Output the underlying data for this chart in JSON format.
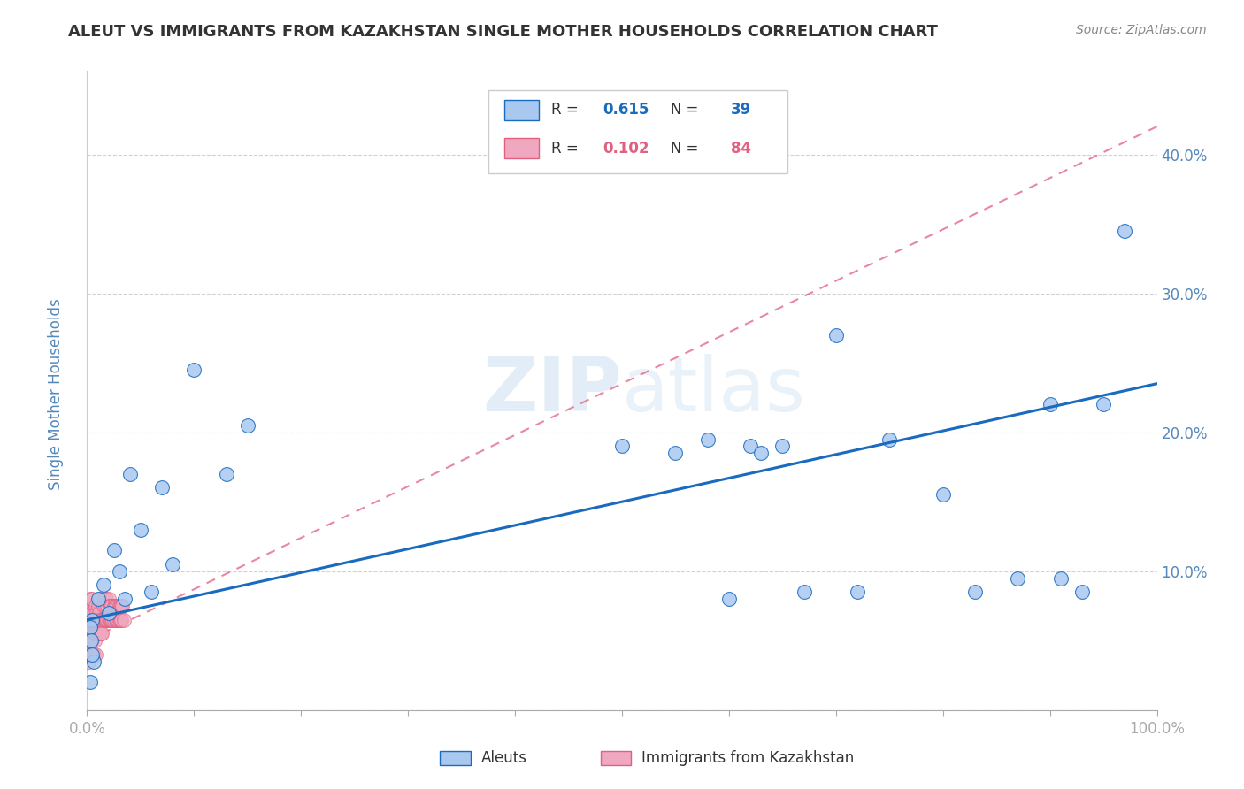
{
  "title": "ALEUT VS IMMIGRANTS FROM KAZAKHSTAN SINGLE MOTHER HOUSEHOLDS CORRELATION CHART",
  "source": "Source: ZipAtlas.com",
  "ylabel": "Single Mother Households",
  "legend_label1": "Aleuts",
  "legend_label2": "Immigrants from Kazakhstan",
  "r1": 0.615,
  "n1": 39,
  "r2": 0.102,
  "n2": 84,
  "color1": "#a8c8f0",
  "color2": "#f0a8c0",
  "line1_color": "#1a6bbf",
  "line2_color": "#e06080",
  "title_color": "#333333",
  "source_color": "#888888",
  "axis_color": "#5588bb",
  "background_color": "#ffffff",
  "grid_color": "#cccccc",
  "watermark_color": "#c8ddf0",
  "aleut_x": [
    0.003,
    0.005,
    0.006,
    0.003,
    0.004,
    0.005,
    0.01,
    0.015,
    0.02,
    0.025,
    0.03,
    0.035,
    0.04,
    0.05,
    0.06,
    0.07,
    0.08,
    0.1,
    0.13,
    0.15,
    0.5,
    0.55,
    0.58,
    0.6,
    0.62,
    0.63,
    0.65,
    0.67,
    0.7,
    0.72,
    0.75,
    0.8,
    0.83,
    0.87,
    0.9,
    0.91,
    0.93,
    0.95,
    0.97
  ],
  "aleut_y": [
    0.02,
    0.065,
    0.035,
    0.06,
    0.05,
    0.04,
    0.08,
    0.09,
    0.07,
    0.115,
    0.1,
    0.08,
    0.17,
    0.13,
    0.085,
    0.16,
    0.105,
    0.245,
    0.17,
    0.205,
    0.19,
    0.185,
    0.195,
    0.08,
    0.19,
    0.185,
    0.19,
    0.085,
    0.27,
    0.085,
    0.195,
    0.155,
    0.085,
    0.095,
    0.22,
    0.095,
    0.085,
    0.22,
    0.345
  ],
  "kaz_x": [
    0.001,
    0.001,
    0.001,
    0.001,
    0.001,
    0.002,
    0.002,
    0.002,
    0.002,
    0.002,
    0.003,
    0.003,
    0.003,
    0.003,
    0.003,
    0.003,
    0.004,
    0.004,
    0.004,
    0.004,
    0.005,
    0.005,
    0.005,
    0.005,
    0.005,
    0.006,
    0.006,
    0.006,
    0.007,
    0.007,
    0.007,
    0.007,
    0.008,
    0.008,
    0.008,
    0.008,
    0.009,
    0.009,
    0.01,
    0.01,
    0.01,
    0.011,
    0.011,
    0.012,
    0.012,
    0.013,
    0.013,
    0.014,
    0.014,
    0.015,
    0.015,
    0.016,
    0.016,
    0.017,
    0.017,
    0.018,
    0.018,
    0.019,
    0.019,
    0.02,
    0.02,
    0.021,
    0.021,
    0.022,
    0.022,
    0.023,
    0.023,
    0.024,
    0.025,
    0.025,
    0.026,
    0.027,
    0.027,
    0.028,
    0.029,
    0.029,
    0.03,
    0.03,
    0.031,
    0.031,
    0.032,
    0.032,
    0.033,
    0.034
  ],
  "kaz_y": [
    0.05,
    0.04,
    0.065,
    0.035,
    0.06,
    0.055,
    0.04,
    0.065,
    0.05,
    0.07,
    0.06,
    0.075,
    0.04,
    0.065,
    0.08,
    0.05,
    0.07,
    0.055,
    0.04,
    0.06,
    0.065,
    0.08,
    0.05,
    0.04,
    0.055,
    0.065,
    0.055,
    0.04,
    0.07,
    0.055,
    0.065,
    0.05,
    0.065,
    0.075,
    0.055,
    0.04,
    0.07,
    0.055,
    0.065,
    0.075,
    0.055,
    0.07,
    0.055,
    0.065,
    0.08,
    0.065,
    0.055,
    0.065,
    0.055,
    0.075,
    0.065,
    0.065,
    0.08,
    0.065,
    0.075,
    0.065,
    0.08,
    0.065,
    0.075,
    0.065,
    0.08,
    0.065,
    0.075,
    0.065,
    0.075,
    0.065,
    0.075,
    0.065,
    0.075,
    0.065,
    0.075,
    0.065,
    0.075,
    0.065,
    0.075,
    0.065,
    0.075,
    0.065,
    0.075,
    0.065,
    0.075,
    0.065,
    0.075,
    0.065
  ],
  "xlim": [
    0,
    1.0
  ],
  "ylim": [
    0,
    0.46
  ],
  "line1_x0": 0.0,
  "line1_y0": 0.065,
  "line1_x1": 1.0,
  "line1_y1": 0.235,
  "line2_x0": 0.0,
  "line2_y0": 0.05,
  "line2_x1": 1.0,
  "line2_y1": 0.42,
  "xtick_positions": [
    0.0,
    0.1,
    0.2,
    0.3,
    0.4,
    0.5,
    0.6,
    0.7,
    0.8,
    0.9,
    1.0
  ],
  "xtick_labels_show": [
    "0.0%",
    "",
    "",
    "",
    "",
    "",
    "",
    "",
    "",
    "",
    "100.0%"
  ],
  "ytick_positions": [
    0.0,
    0.1,
    0.2,
    0.3,
    0.4
  ],
  "ytick_labels": [
    "",
    "10.0%",
    "20.0%",
    "30.0%",
    "40.0%"
  ]
}
